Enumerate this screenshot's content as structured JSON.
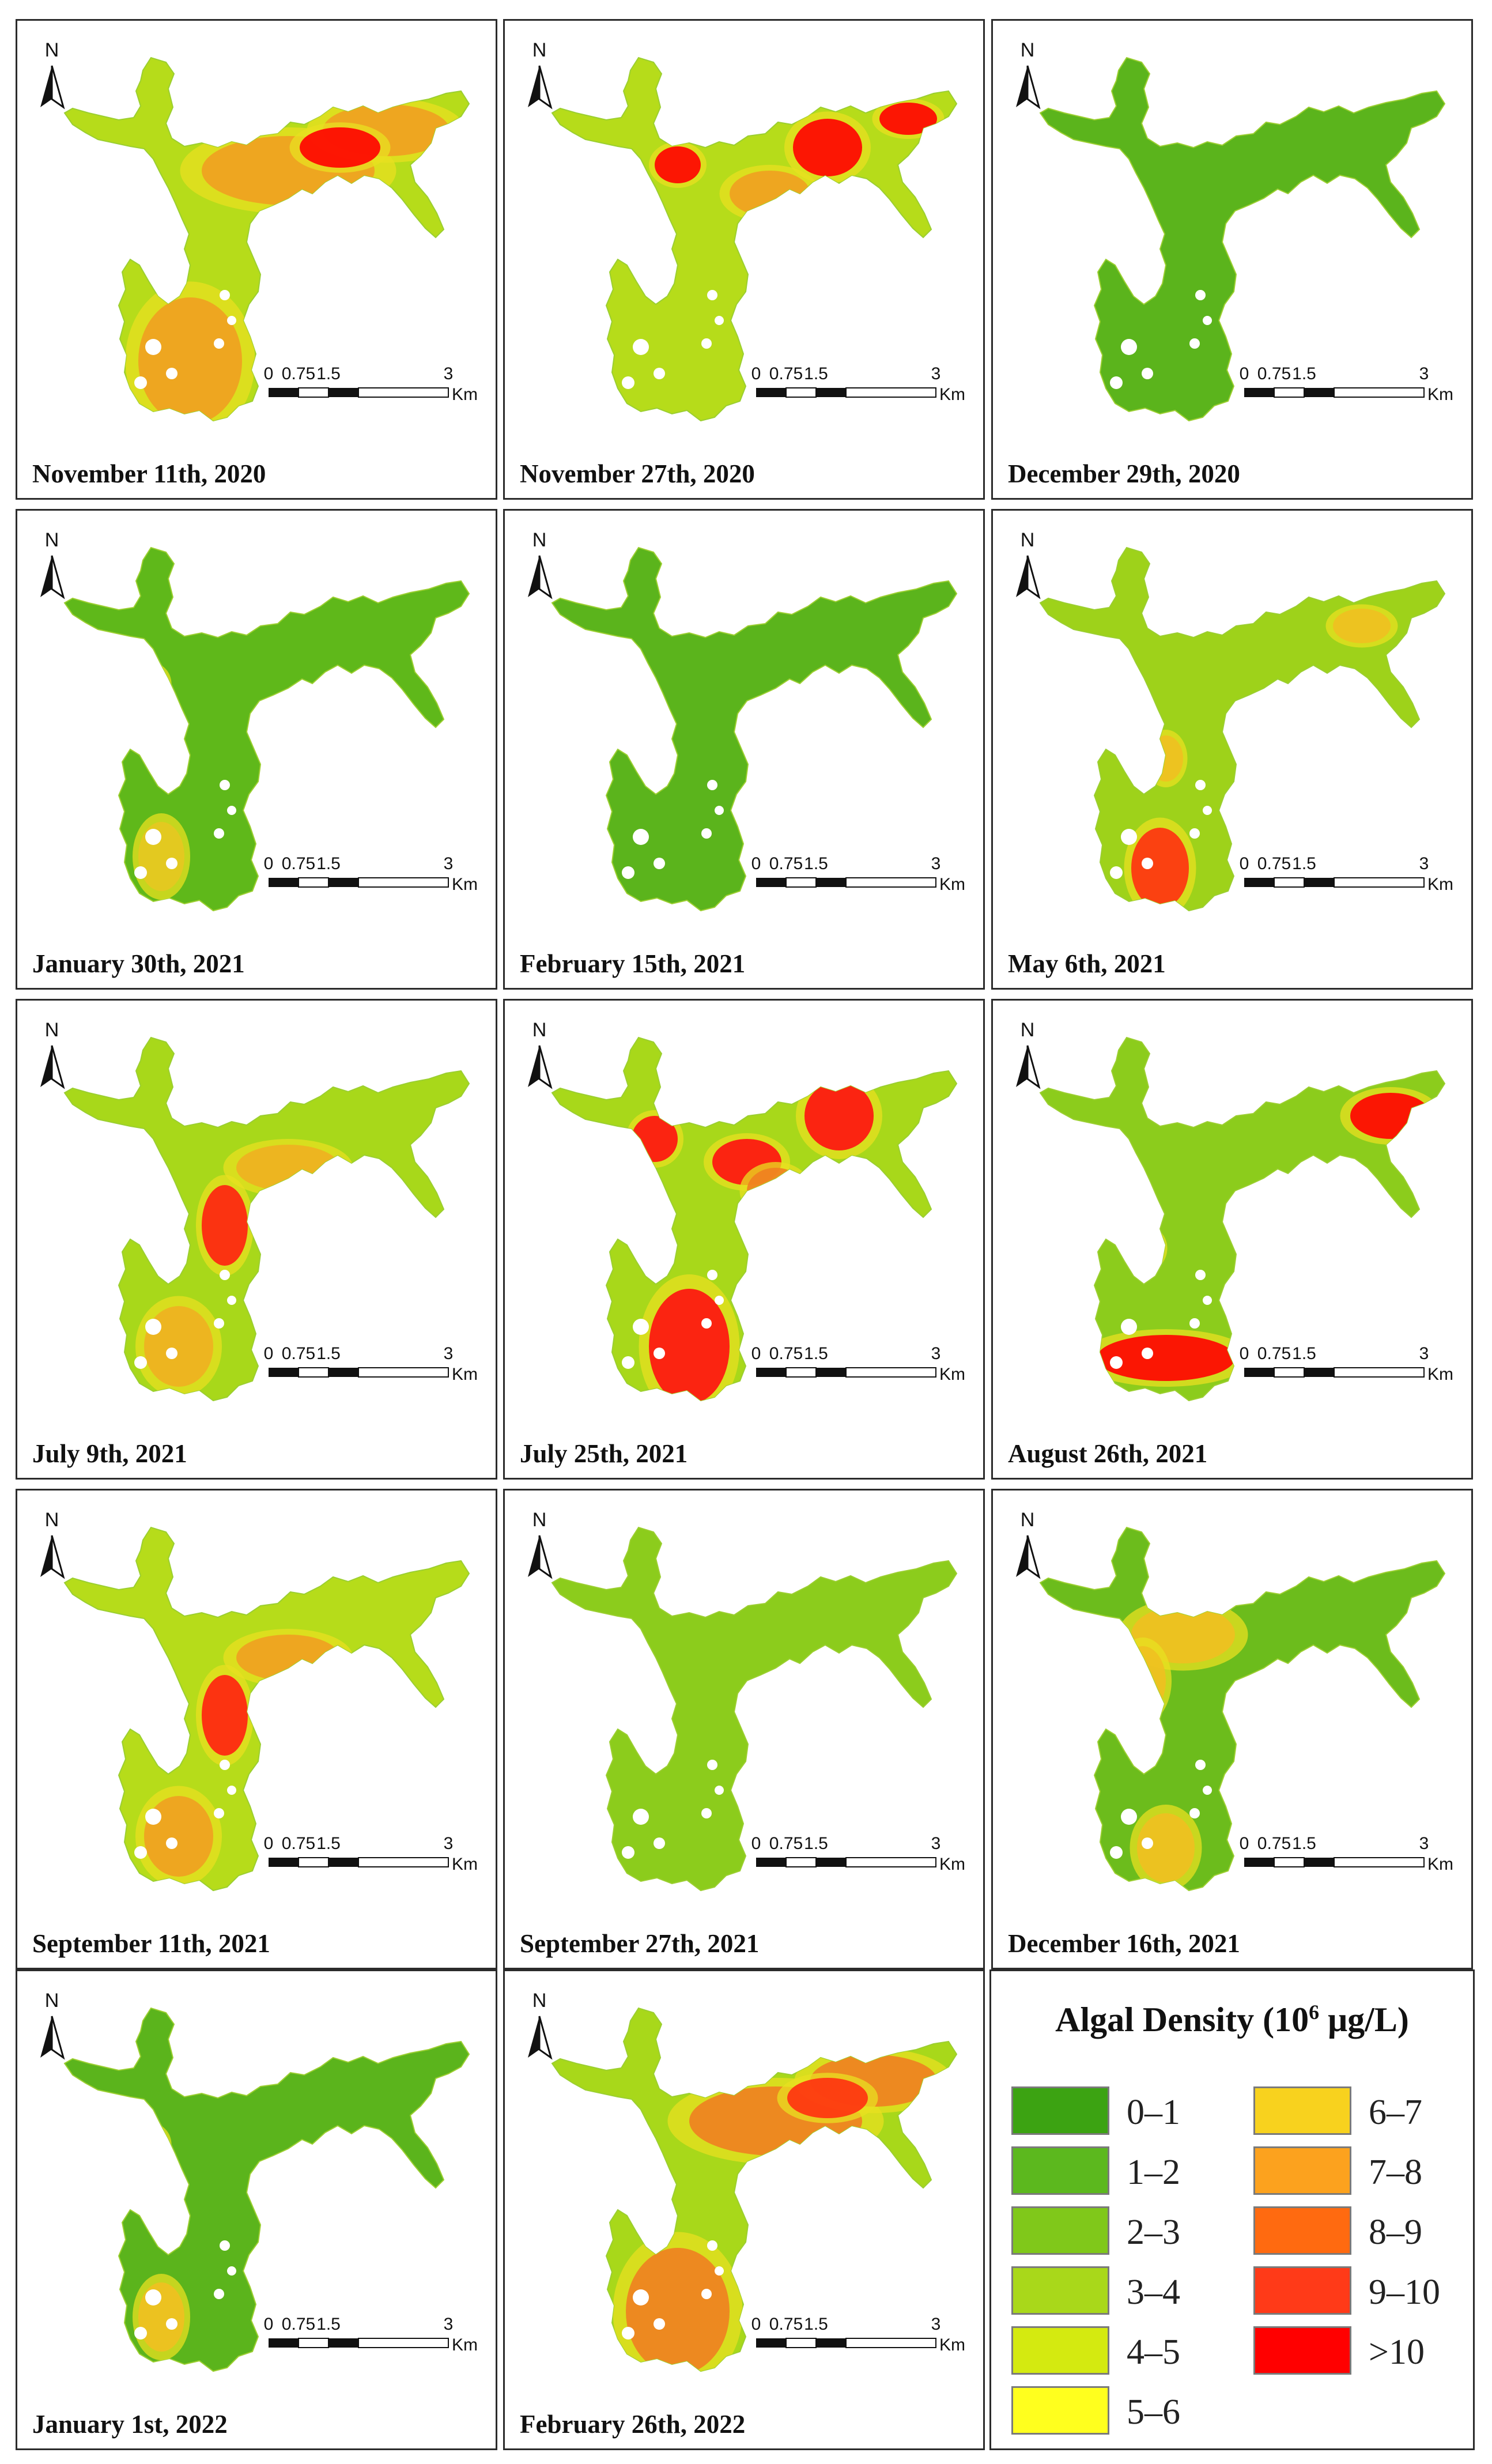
{
  "panels": [
    {
      "date": "November 11th, 2020",
      "bloom": "high-ne-sw",
      "colors": {
        "base": "#b6dc1a",
        "hot": "#f0a020",
        "max": "#ff0000"
      }
    },
    {
      "date": "November 27th, 2020",
      "bloom": "ring-ne",
      "colors": {
        "base": "#b6dc1a",
        "hot": "#f0a020",
        "max": "#ff0000"
      }
    },
    {
      "date": "December 29th, 2020",
      "bloom": "low",
      "colors": {
        "base": "#5bb41c",
        "hot": "#8ccc1e",
        "max": "#ff3010"
      }
    },
    {
      "date": "January 30th, 2021",
      "bloom": "low-west",
      "colors": {
        "base": "#5fb81a",
        "hot": "#e6c820",
        "max": "#ff6a10"
      }
    },
    {
      "date": "February 15th, 2021",
      "bloom": "low",
      "colors": {
        "base": "#5bb41c",
        "hot": "#7dc41c",
        "max": "#e6e600"
      }
    },
    {
      "date": "May 6th, 2021",
      "bloom": "mid-sw",
      "colors": {
        "base": "#9ed21a",
        "hot": "#f0c020",
        "max": "#ff3010"
      }
    },
    {
      "date": "July 9th, 2021",
      "bloom": "mid-channel",
      "colors": {
        "base": "#a8d81a",
        "hot": "#f0b020",
        "max": "#ff2010"
      }
    },
    {
      "date": "July 25th, 2021",
      "bloom": "high-patchy",
      "colors": {
        "base": "#a8d81a",
        "hot": "#f08020",
        "max": "#ff1010"
      }
    },
    {
      "date": "August 26th, 2021",
      "bloom": "edge-sw",
      "colors": {
        "base": "#8ccc1c",
        "hot": "#f0b020",
        "max": "#ff0000"
      }
    },
    {
      "date": "September 11th, 2021",
      "bloom": "mid-channel",
      "colors": {
        "base": "#b6dc1a",
        "hot": "#f0a020",
        "max": "#ff2010"
      }
    },
    {
      "date": "September 27th, 2021",
      "bloom": "low",
      "colors": {
        "base": "#8ccc1c",
        "hot": "#b6dc1a",
        "max": "#ff6a10"
      }
    },
    {
      "date": "December 16th, 2021",
      "bloom": "mid-west",
      "colors": {
        "base": "#6cbc1c",
        "hot": "#f0c020",
        "max": "#ff8010"
      }
    },
    {
      "date": "January 1st, 2022",
      "bloom": "low-west",
      "colors": {
        "base": "#5bb41c",
        "hot": "#f0c020",
        "max": "#ff6a10"
      }
    },
    {
      "date": "February 26th, 2022",
      "bloom": "high-ne-sw",
      "colors": {
        "base": "#a8d81a",
        "hot": "#f08020",
        "max": "#ff3010"
      }
    }
  ],
  "map": {
    "north_label": "N",
    "scale_ticks": [
      "0",
      "0.75",
      "1.5",
      "3"
    ],
    "scale_unit": "Km"
  },
  "legend": {
    "title_prefix": "Algal Density (10",
    "title_sup": "6",
    "title_suffix": " μg/L)",
    "items": [
      {
        "label": "0–1",
        "color": "#3ca312"
      },
      {
        "label": "1–2",
        "color": "#5cb81e"
      },
      {
        "label": "2–3",
        "color": "#80c81a"
      },
      {
        "label": "3–4",
        "color": "#a9d81a"
      },
      {
        "label": "4–5",
        "color": "#d4ea10"
      },
      {
        "label": "5–6",
        "color": "#ffff1e"
      },
      {
        "label": "6–7",
        "color": "#f8d21e"
      },
      {
        "label": "7–8",
        "color": "#fca21e"
      },
      {
        "label": "8–9",
        "color": "#ff6a10"
      },
      {
        "label": "9–10",
        "color": "#ff3a18"
      },
      {
        "label": ">10",
        "color": "#ff0000"
      }
    ]
  }
}
